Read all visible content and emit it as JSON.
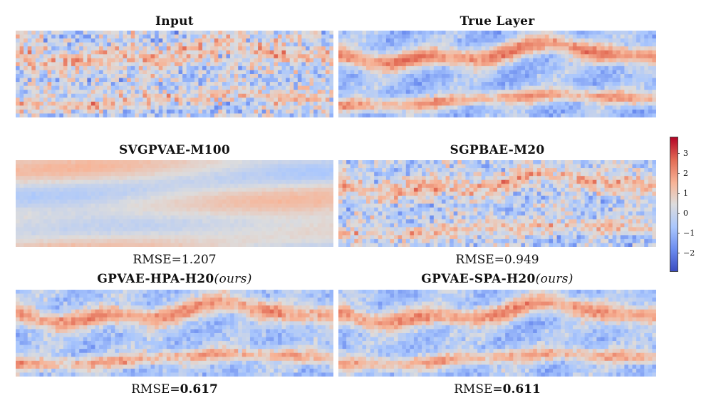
{
  "chart_data": {
    "type": "heatmap",
    "colormap": "coolwarm",
    "panels": [
      {
        "id": "input",
        "title": "Input",
        "title_suffix": "",
        "rmse_label": "",
        "rmse": "",
        "best": false
      },
      {
        "id": "true",
        "title": "True Layer",
        "title_suffix": "",
        "rmse_label": "",
        "rmse": "",
        "best": false
      },
      {
        "id": "svgpvae",
        "title": "SVGPVAE-M100",
        "title_suffix": "",
        "rmse_label": "RMSE=",
        "rmse": "1.207",
        "best": false
      },
      {
        "id": "sgpbae",
        "title": "SGPBAE-M20",
        "title_suffix": "",
        "rmse_label": "RMSE=",
        "rmse": "0.949",
        "best": false
      },
      {
        "id": "hpa",
        "title": "GPVAE-HPA-H20",
        "title_suffix": "(ours)",
        "rmse_label": "RMSE=",
        "rmse": "0.617",
        "best": true
      },
      {
        "id": "spa",
        "title": "GPVAE-SPA-H20",
        "title_suffix": "(ours)",
        "rmse_label": "RMSE=",
        "rmse": "0.611",
        "best": true
      }
    ],
    "colorbar": {
      "min": -2.9,
      "max": 3.8,
      "ticks": [
        3,
        2,
        1,
        0,
        -1,
        -2
      ],
      "tick_labels": [
        "3",
        "2",
        "1",
        "0",
        "−1",
        "−2"
      ]
    }
  }
}
